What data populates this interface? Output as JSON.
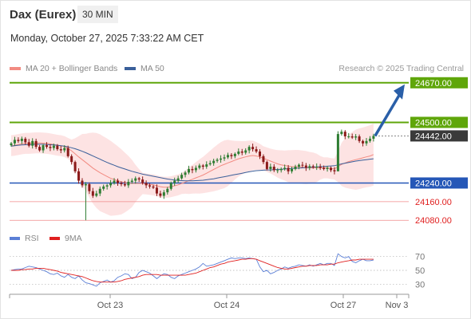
{
  "header": {
    "instrument": "Dax (Eurex)",
    "timeframe": "30 MIN",
    "datetime": "Monday, October 27, 2025 7:33:22 AM CET"
  },
  "credit": "Research © 2025 Trading Central",
  "legend": [
    {
      "label": "MA 20 + Bollinger Bands",
      "color": "#f28b82"
    },
    {
      "label": "MA 50",
      "color": "#3a5f9a"
    }
  ],
  "sub_legend": [
    {
      "label": "RSI",
      "color": "#5b7fd6"
    },
    {
      "label": "9MA",
      "color": "#e02020"
    }
  ],
  "colors": {
    "candle_up": "#2e7d32",
    "candle_down": "#8b1a1a",
    "resistance": "#5fa60a",
    "support": "#2557b7",
    "target": "#e02020",
    "arrow": "#2a5fa8",
    "bollinger_fill": "#fde0e0"
  },
  "chart_data": [
    {
      "type": "candlestick",
      "ylim": [
        24050,
        24700
      ],
      "x_ticks": [
        "Oct 23",
        "Oct 24",
        "Oct 27",
        "Nov 3"
      ],
      "levels": [
        {
          "label": "24670.00",
          "value": 24670,
          "kind": "resistance"
        },
        {
          "label": "24500.00",
          "value": 24500,
          "kind": "resistance"
        },
        {
          "label": "24442.00",
          "value": 24442,
          "kind": "last"
        },
        {
          "label": "24240.00",
          "value": 24240,
          "kind": "support"
        },
        {
          "label": "24160.00",
          "value": 24160,
          "kind": "target"
        },
        {
          "label": "24080.00",
          "value": 24080,
          "kind": "target"
        }
      ],
      "forecast": {
        "from": 24442,
        "to": 24670
      },
      "close": [
        24410,
        24425,
        24420,
        24430,
        24415,
        24400,
        24420,
        24395,
        24380,
        24402,
        24395,
        24390,
        24400,
        24385,
        24380,
        24390,
        24355,
        24330,
        24290,
        24250,
        24230,
        24235,
        24205,
        24185,
        24195,
        24215,
        24225,
        24230,
        24240,
        24250,
        24240,
        24235,
        24230,
        24245,
        24250,
        24260,
        24255,
        24240,
        24230,
        24225,
        24220,
        24195,
        24185,
        24200,
        24215,
        24240,
        24250,
        24260,
        24275,
        24285,
        24300,
        24295,
        24305,
        24315,
        24310,
        24320,
        24325,
        24335,
        24340,
        24345,
        24350,
        24360,
        24355,
        24365,
        24375,
        24370,
        24380,
        24395,
        24385,
        24375,
        24355,
        24330,
        24300,
        24310,
        24295,
        24295,
        24300,
        24305,
        24290,
        24300,
        24310,
        24318,
        24315,
        24305,
        24312,
        24308,
        24310,
        24305,
        24300,
        24305,
        24295,
        24290,
        24450,
        24460,
        24440,
        24440,
        24435,
        24440,
        24420,
        24410,
        24420,
        24430,
        24442
      ],
      "ma20": [
        24400,
        24402,
        24405,
        24408,
        24410,
        24410,
        24411,
        24412,
        24412,
        24411,
        24410,
        24408,
        24405,
        24402,
        24400,
        24396,
        24388,
        24378,
        24365,
        24352,
        24340,
        24328,
        24316,
        24304,
        24294,
        24284,
        24276,
        24268,
        24260,
        24255,
        24250,
        24245,
        24242,
        24240,
        24238,
        24238,
        24238,
        24238,
        24236,
        24234,
        24232,
        24228,
        24224,
        24222,
        24222,
        24224,
        24228,
        24232,
        24238,
        24244,
        24250,
        24256,
        24262,
        24268,
        24274,
        24282,
        24290,
        24298,
        24306,
        24314,
        24320,
        24326,
        24332,
        24338,
        24344,
        24348,
        24352,
        24356,
        24358,
        24356,
        24352,
        24346,
        24340,
        24334,
        24328,
        24322,
        24318,
        24315,
        24312,
        24310,
        24310,
        24310,
        24308,
        24306,
        24305,
        24305,
        24305,
        24305,
        24305,
        24305,
        24302,
        24300,
        24310,
        24320,
        24326,
        24332,
        24336,
        24340,
        24344,
        24348,
        24352,
        24356,
        24362
      ],
      "ma50": [
        24398,
        24400,
        24402,
        24403,
        24404,
        24405,
        24405,
        24406,
        24406,
        24406,
        24405,
        24404,
        24403,
        24402,
        24400,
        24398,
        24395,
        24391,
        24387,
        24382,
        24376,
        24370,
        24363,
        24356,
        24349,
        24342,
        24335,
        24328,
        24322,
        24316,
        24310,
        24305,
        24300,
        24295,
        24290,
        24286,
        24282,
        24278,
        24275,
        24272,
        24269,
        24266,
        24263,
        24260,
        24257,
        24255,
        24253,
        24251,
        24250,
        24249,
        24249,
        24249,
        24250,
        24251,
        24252,
        24254,
        24256,
        24258,
        24261,
        24264,
        24267,
        24270,
        24273,
        24276,
        24279,
        24282,
        24285,
        24288,
        24291,
        24293,
        24294,
        24295,
        24296,
        24296,
        24297,
        24298,
        24299,
        24300,
        24301,
        24302,
        24303,
        24304,
        24305,
        24306,
        24307,
        24308,
        24309,
        24310,
        24311,
        24312,
        24313,
        24314,
        24318,
        24322,
        24325,
        24328,
        24331,
        24334,
        24336,
        24338,
        24340,
        24342,
        24344
      ]
    },
    {
      "type": "line",
      "ylim": [
        20,
        80
      ],
      "y_ticks": [
        70,
        50,
        30
      ],
      "series": [
        {
          "name": "RSI",
          "values": [
            50,
            51,
            52,
            52,
            54,
            56,
            55,
            54,
            52,
            50,
            48,
            45,
            44,
            46,
            42,
            40,
            44,
            40,
            38,
            42,
            36,
            32,
            31,
            29,
            27,
            32,
            34,
            36,
            33,
            35,
            40,
            42,
            45,
            44,
            38,
            40,
            47,
            50,
            48,
            46,
            42,
            38,
            42,
            45,
            44,
            40,
            38,
            42,
            44,
            46,
            48,
            50,
            52,
            55,
            60,
            56,
            57,
            58,
            60,
            62,
            64,
            66,
            68,
            67,
            68,
            68,
            67,
            68,
            67,
            66,
            55,
            48,
            50,
            45,
            47,
            50,
            52,
            55,
            53,
            55,
            56,
            58,
            57,
            56,
            58,
            56,
            58,
            60,
            58,
            60,
            60,
            57,
            74,
            70,
            68,
            70,
            63,
            61,
            64,
            66,
            64,
            64,
            65
          ]
        },
        {
          "name": "9MA",
          "values": [
            50,
            50,
            50,
            51,
            51,
            52,
            52,
            53,
            53,
            53,
            52,
            51,
            50,
            49,
            47,
            46,
            45,
            44,
            43,
            42,
            41,
            39,
            37,
            35,
            34,
            33,
            33,
            33,
            33,
            33,
            34,
            35,
            37,
            38,
            39,
            40,
            41,
            43,
            44,
            44,
            44,
            44,
            43,
            43,
            43,
            43,
            43,
            43,
            43,
            43,
            44,
            45,
            46,
            48,
            50,
            52,
            54,
            55,
            57,
            59,
            60,
            62,
            63,
            64,
            65,
            66,
            66,
            67,
            67,
            66,
            64,
            62,
            60,
            58,
            56,
            54,
            53,
            52,
            52,
            53,
            54,
            55,
            56,
            56,
            57,
            57,
            57,
            58,
            58,
            58,
            59,
            59,
            61,
            62,
            63,
            64,
            65,
            65,
            66,
            66,
            66,
            66,
            66
          ]
        }
      ]
    }
  ]
}
